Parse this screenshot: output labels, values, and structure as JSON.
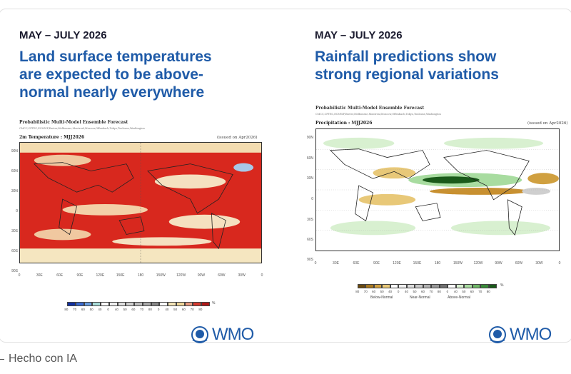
{
  "slides": [
    {
      "date": "MAY – JULY 2026",
      "headline": [
        "Land surface temperatures",
        "are expected to be above-",
        "normal nearly everywhere"
      ],
      "forecast_title": "Probabilistic Multi-Model Ensemble Forecast",
      "centres": "CMCC,CPTEC,ECMWF,Exeter,Melbourne,Montreal,Moscow,Offenbach,Tokyo,Toulouse,Washington",
      "variable": "2m Temperature : MJJ2026",
      "issued": "(issued on Apr2026)",
      "colorbar_labels": [
        "80",
        "70",
        "60",
        "50",
        "40",
        "0",
        "40",
        "50",
        "60",
        "70",
        "80",
        "0",
        "40",
        "50",
        "60",
        "70",
        "80"
      ],
      "colorbar_colors": [
        "#1030a0",
        "#3a6ad0",
        "#6a9ee0",
        "#a8dcd8",
        "#ffffff",
        "#f0f0f0",
        "#e0e0e0",
        "#cfcfcf",
        "#bdbdbd",
        "#a8a8a8",
        "#888888",
        "#ffffff",
        "#f5e6b8",
        "#efd79a",
        "#e89a80",
        "#d83a30",
        "#b01818"
      ],
      "colorbar_unit": "%",
      "category_labels": []
    },
    {
      "date": "MAY – JULY 2026",
      "headline": [
        "Rainfall predictions show",
        "strong regional variations"
      ],
      "forecast_title": "Probabilistic Multi-Model Ensemble Forecast",
      "centres": "CMCC,CPTEC,ECMWF,Exeter,Melbourne,Montreal,Moscow,Offenbach,Tokyo,Toulouse,Washington",
      "variable": "Precipitation : MJJ2026",
      "issued": "(issued on Apr2026)",
      "colorbar_labels": [
        "80",
        "70",
        "60",
        "50",
        "40",
        "0",
        "40",
        "50",
        "60",
        "70",
        "80",
        "0",
        "40",
        "50",
        "60",
        "70",
        "80"
      ],
      "colorbar_colors": [
        "#6a4a10",
        "#a87820",
        "#d0a040",
        "#e8c878",
        "#ffffff",
        "#f0f0f0",
        "#dcdcdc",
        "#c8c8c8",
        "#b0b0b0",
        "#989898",
        "#707070",
        "#ffffff",
        "#d8f0d0",
        "#a8dca0",
        "#70b868",
        "#3a8a3a",
        "#1a5a1a"
      ],
      "colorbar_unit": "%",
      "category_labels": [
        "Below-Normal",
        "Near-Normal",
        "Above-Normal"
      ]
    }
  ],
  "lat_labels": [
    "90N",
    "60N",
    "30N",
    "0",
    "30S",
    "60S",
    "90S"
  ],
  "lon_labels": [
    "0",
    "30E",
    "60E",
    "90E",
    "120E",
    "150E",
    "180",
    "150W",
    "120W",
    "90W",
    "60W",
    "30W",
    "0"
  ],
  "logo": "WMO",
  "footer": "Hecho con IA",
  "colors": {
    "headline": "#1f5ba8",
    "temp_above": "#d8281e",
    "rain_above": "#3a8a3a",
    "rain_below": "#c89030"
  }
}
